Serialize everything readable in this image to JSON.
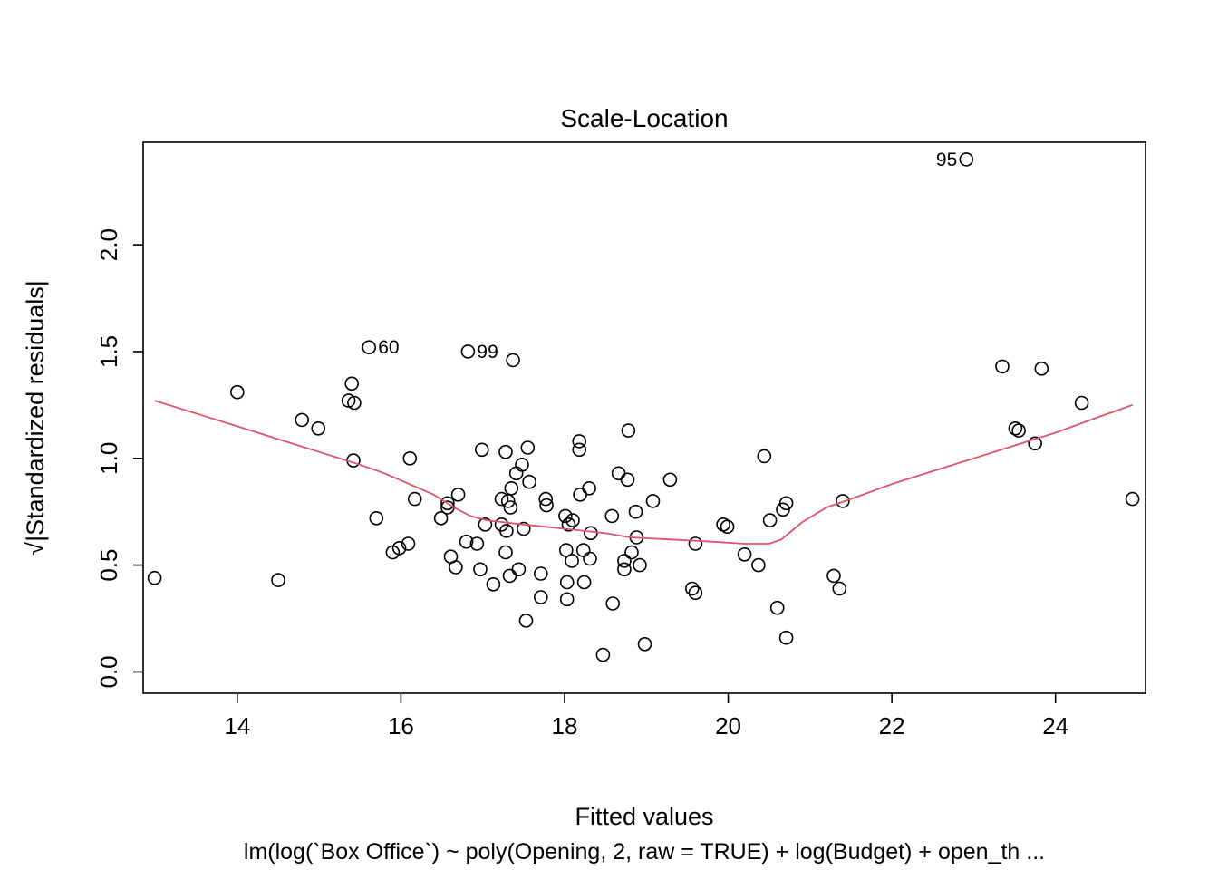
{
  "chart_data": {
    "type": "scatter",
    "title": "Scale-Location",
    "xlabel": "Fitted values",
    "ylabel": "√|Standardized residuals|",
    "subtitle": "lm(log(`Box Office`) ~ poly(Opening, 2, raw = TRUE) + log(Budget) + open_th ...",
    "xlim": [
      12.85,
      25.1
    ],
    "ylim": [
      -0.1,
      2.48
    ],
    "x_ticks": [
      14,
      16,
      18,
      20,
      22,
      24
    ],
    "y_ticks": [
      0.0,
      0.5,
      1.0,
      1.5,
      2.0
    ],
    "y_tick_labels": [
      "0.0",
      "0.5",
      "1.0",
      "1.5",
      "2.0"
    ],
    "grid": false,
    "colors": {
      "points": "#000000",
      "smooth": "#DF536B",
      "frame": "#000000"
    },
    "points": [
      [
        12.99,
        0.44
      ],
      [
        14.0,
        1.31
      ],
      [
        14.5,
        0.43
      ],
      [
        14.79,
        1.18
      ],
      [
        14.99,
        1.14
      ],
      [
        15.36,
        1.27
      ],
      [
        15.4,
        1.35
      ],
      [
        15.43,
        1.26
      ],
      [
        15.42,
        0.99
      ],
      [
        15.61,
        1.52
      ],
      [
        15.7,
        0.72
      ],
      [
        15.9,
        0.56
      ],
      [
        15.98,
        0.58
      ],
      [
        16.09,
        0.6
      ],
      [
        16.11,
        1.0
      ],
      [
        16.17,
        0.81
      ],
      [
        16.49,
        0.72
      ],
      [
        16.57,
        0.77
      ],
      [
        16.57,
        0.79
      ],
      [
        16.61,
        0.54
      ],
      [
        16.67,
        0.49
      ],
      [
        16.7,
        0.83
      ],
      [
        16.8,
        0.61
      ],
      [
        16.82,
        1.5
      ],
      [
        16.93,
        0.6
      ],
      [
        16.97,
        0.48
      ],
      [
        16.99,
        1.04
      ],
      [
        17.03,
        0.69
      ],
      [
        17.13,
        0.41
      ],
      [
        17.23,
        0.81
      ],
      [
        17.23,
        0.69
      ],
      [
        17.28,
        1.03
      ],
      [
        17.28,
        0.56
      ],
      [
        17.29,
        0.66
      ],
      [
        17.31,
        0.8
      ],
      [
        17.33,
        0.45
      ],
      [
        17.34,
        0.77
      ],
      [
        17.35,
        0.86
      ],
      [
        17.37,
        1.46
      ],
      [
        17.41,
        0.93
      ],
      [
        17.44,
        0.48
      ],
      [
        17.48,
        0.97
      ],
      [
        17.5,
        0.67
      ],
      [
        17.53,
        0.24
      ],
      [
        17.55,
        1.05
      ],
      [
        17.57,
        0.89
      ],
      [
        17.71,
        0.46
      ],
      [
        17.71,
        0.35
      ],
      [
        17.77,
        0.81
      ],
      [
        17.78,
        0.78
      ],
      [
        18.01,
        0.73
      ],
      [
        18.02,
        0.57
      ],
      [
        18.03,
        0.42
      ],
      [
        18.03,
        0.34
      ],
      [
        18.05,
        0.69
      ],
      [
        18.09,
        0.52
      ],
      [
        18.1,
        0.71
      ],
      [
        18.18,
        1.08
      ],
      [
        18.18,
        1.04
      ],
      [
        18.19,
        0.83
      ],
      [
        18.23,
        0.57
      ],
      [
        18.24,
        0.42
      ],
      [
        18.3,
        0.86
      ],
      [
        18.31,
        0.53
      ],
      [
        18.32,
        0.65
      ],
      [
        18.47,
        0.08
      ],
      [
        18.58,
        0.73
      ],
      [
        18.59,
        0.32
      ],
      [
        18.66,
        0.93
      ],
      [
        18.73,
        0.52
      ],
      [
        18.73,
        0.48
      ],
      [
        18.77,
        0.9
      ],
      [
        18.78,
        1.13
      ],
      [
        18.82,
        0.56
      ],
      [
        18.87,
        0.75
      ],
      [
        18.88,
        0.63
      ],
      [
        18.92,
        0.5
      ],
      [
        18.98,
        0.13
      ],
      [
        19.08,
        0.8
      ],
      [
        19.29,
        0.9
      ],
      [
        19.56,
        0.39
      ],
      [
        19.6,
        0.37
      ],
      [
        19.6,
        0.6
      ],
      [
        19.94,
        0.69
      ],
      [
        19.99,
        0.68
      ],
      [
        20.2,
        0.55
      ],
      [
        20.37,
        0.5
      ],
      [
        20.44,
        1.01
      ],
      [
        20.51,
        0.71
      ],
      [
        20.6,
        0.3
      ],
      [
        20.67,
        0.76
      ],
      [
        20.71,
        0.79
      ],
      [
        20.71,
        0.16
      ],
      [
        21.29,
        0.45
      ],
      [
        21.36,
        0.39
      ],
      [
        21.4,
        0.8
      ],
      [
        22.91,
        2.4
      ],
      [
        23.35,
        1.43
      ],
      [
        23.51,
        1.14
      ],
      [
        23.55,
        1.13
      ],
      [
        23.75,
        1.07
      ],
      [
        23.83,
        1.42
      ],
      [
        24.32,
        1.26
      ],
      [
        24.94,
        0.81
      ]
    ],
    "smooth_line": [
      [
        12.99,
        1.27
      ],
      [
        13.5,
        1.21
      ],
      [
        14.0,
        1.15
      ],
      [
        14.5,
        1.09
      ],
      [
        15.0,
        1.03
      ],
      [
        15.5,
        0.97
      ],
      [
        15.8,
        0.93
      ],
      [
        16.1,
        0.88
      ],
      [
        16.4,
        0.83
      ],
      [
        16.65,
        0.77
      ],
      [
        16.85,
        0.73
      ],
      [
        17.05,
        0.71
      ],
      [
        17.5,
        0.69
      ],
      [
        18.0,
        0.67
      ],
      [
        18.5,
        0.65
      ],
      [
        18.8,
        0.63
      ],
      [
        19.3,
        0.62
      ],
      [
        19.8,
        0.61
      ],
      [
        20.2,
        0.6
      ],
      [
        20.5,
        0.6
      ],
      [
        20.65,
        0.62
      ],
      [
        20.9,
        0.7
      ],
      [
        21.2,
        0.77
      ],
      [
        21.5,
        0.81
      ],
      [
        22.0,
        0.88
      ],
      [
        22.5,
        0.94
      ],
      [
        23.0,
        1.0
      ],
      [
        23.5,
        1.06
      ],
      [
        24.0,
        1.12
      ],
      [
        24.5,
        1.19
      ],
      [
        24.94,
        1.25
      ]
    ],
    "annotations": [
      {
        "label": "60",
        "x": 15.61,
        "y": 1.52,
        "side": "right"
      },
      {
        "label": "99",
        "x": 16.82,
        "y": 1.5,
        "side": "right"
      },
      {
        "label": "95",
        "x": 22.91,
        "y": 2.4,
        "side": "left"
      }
    ]
  }
}
